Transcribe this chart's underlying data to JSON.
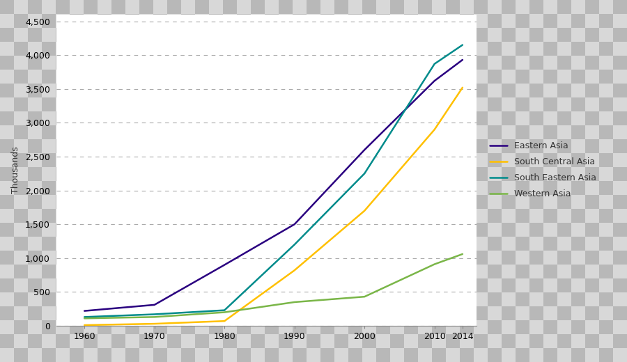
{
  "years": [
    1960,
    1970,
    1980,
    1990,
    2000,
    2010,
    2014
  ],
  "eastern_asia": [
    220,
    310,
    900,
    1500,
    2600,
    3620,
    3930
  ],
  "south_central_asia": [
    10,
    30,
    70,
    820,
    1700,
    2900,
    3520
  ],
  "south_eastern_asia": [
    130,
    170,
    230,
    1200,
    2250,
    3870,
    4150
  ],
  "western_asia": [
    110,
    130,
    200,
    350,
    430,
    910,
    1060
  ],
  "colors": {
    "eastern_asia": "#2a0080",
    "south_central_asia": "#ffc000",
    "south_eastern_asia": "#008b8b",
    "western_asia": "#7ab648"
  },
  "legend_labels": [
    "Eastern Asia",
    "South Central Asia",
    "South Eastern Asia",
    "Western Asia"
  ],
  "ylabel": "Thousands",
  "ylim": [
    0,
    4600
  ],
  "yticks": [
    0,
    500,
    1000,
    1500,
    2000,
    2500,
    3000,
    3500,
    4000,
    4500
  ],
  "xticks": [
    1960,
    1970,
    1980,
    1990,
    2000,
    2010,
    2014
  ],
  "xlim": [
    1956,
    2016
  ],
  "line_width": 1.8,
  "checker_light": "#d8d8d8",
  "checker_dark": "#b8b8b8",
  "checker_size": 20
}
